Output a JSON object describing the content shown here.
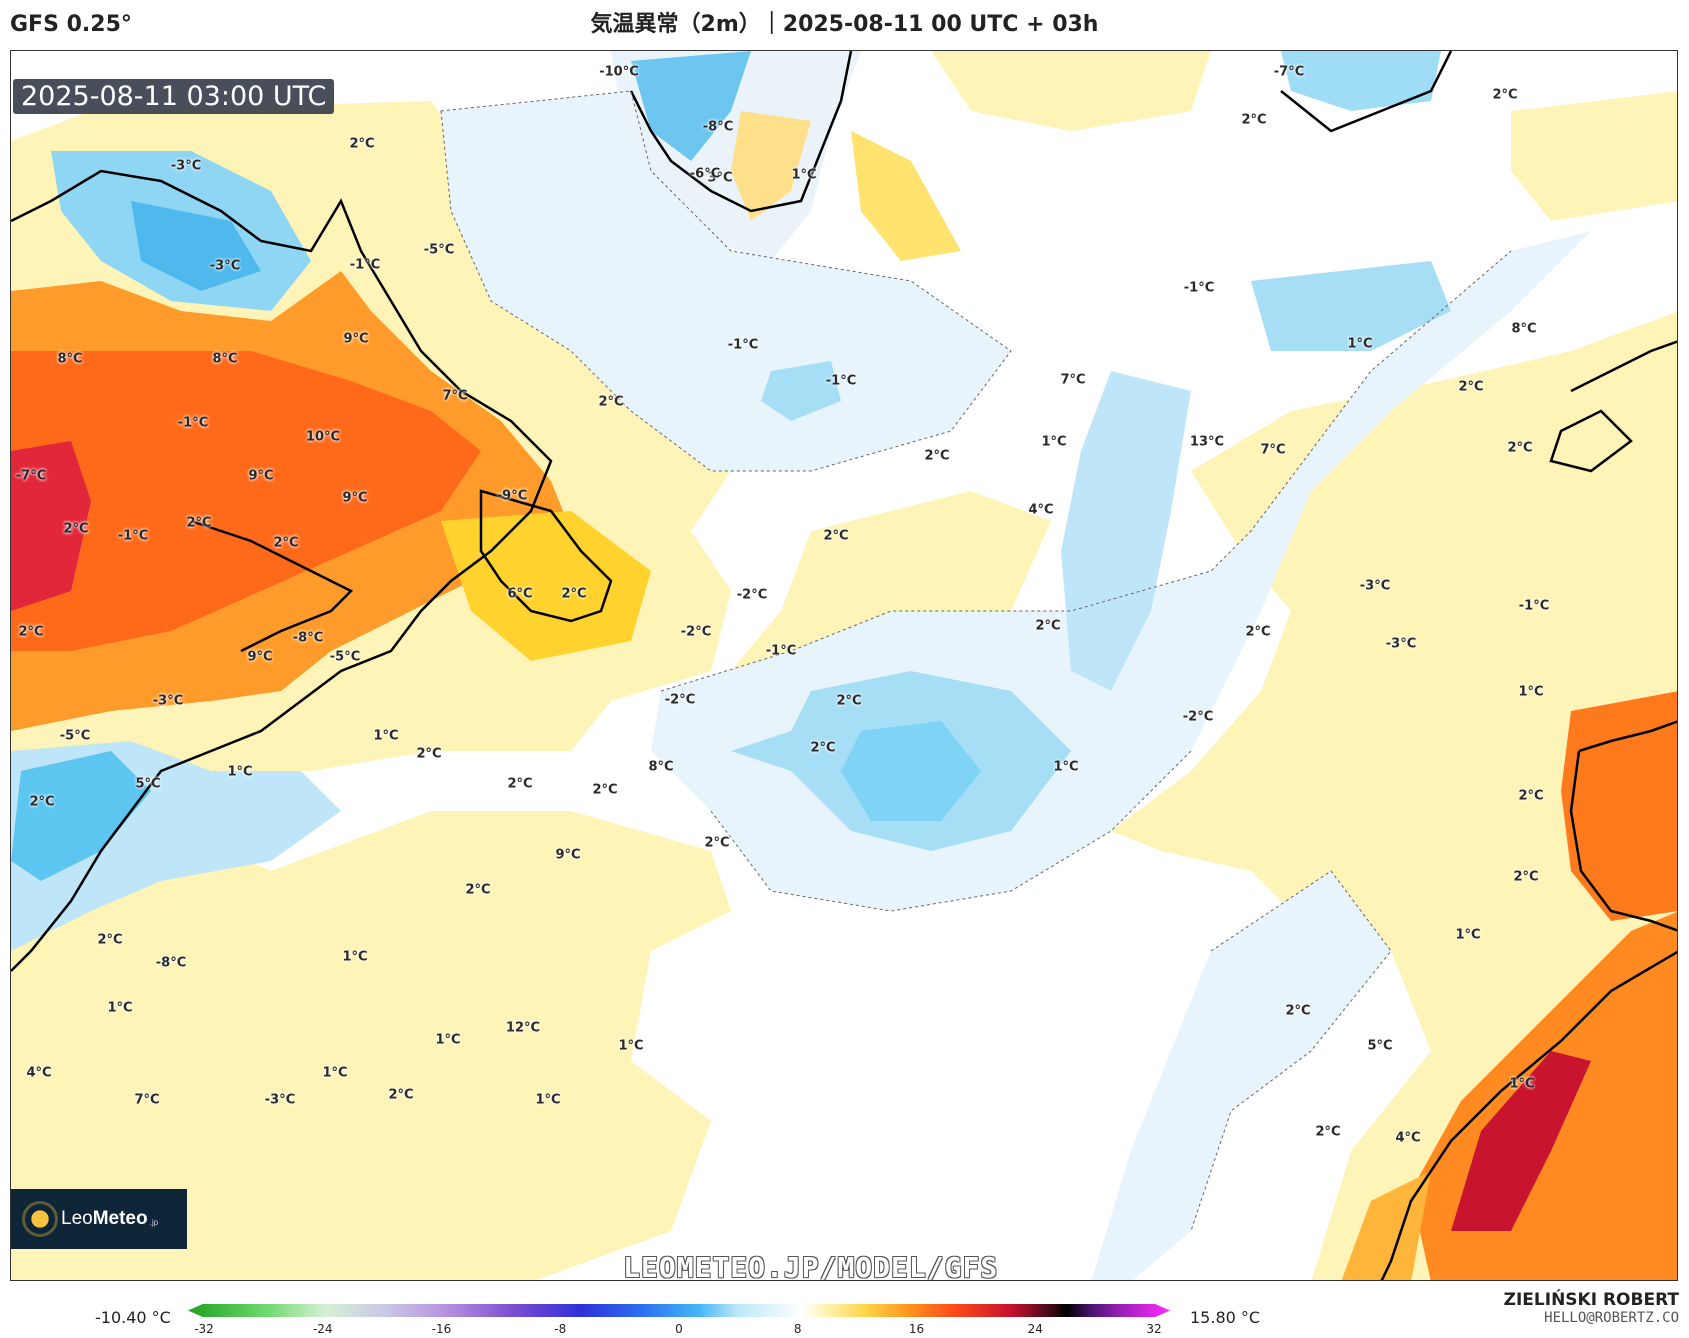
{
  "header": {
    "model": "GFS 0.25°",
    "title": "気温異常（2m）｜2025-08-11 00 UTC + 03h"
  },
  "map": {
    "valid_time": "2025-08-11 03:00 UTC",
    "watermark_url": "LEOMETEO.JP/MODEL/GFS",
    "logo_text": "LeoMeteo",
    "logo_bold": "Meteo",
    "logo_light": "Leo",
    "logo_suffix": ".jp",
    "labels": [
      {
        "text": "-3°C"
      },
      {
        "text": "2°C"
      },
      {
        "text": "-10°C"
      },
      {
        "text": "-7°C"
      },
      {
        "text": "2°C"
      },
      {
        "text": "2°C"
      },
      {
        "text": "-8°C"
      },
      {
        "text": "3°C"
      },
      {
        "text": "-6°C"
      },
      {
        "text": "1°C"
      },
      {
        "text": "-5°C"
      },
      {
        "text": "-3°C"
      },
      {
        "text": "-1°C"
      },
      {
        "text": "-1°C"
      },
      {
        "text": "-1°C"
      },
      {
        "text": "1°C"
      },
      {
        "text": "8°C"
      },
      {
        "text": "8°C"
      },
      {
        "text": "8°C"
      },
      {
        "text": "-1°C"
      },
      {
        "text": "9°C"
      },
      {
        "text": "2°C"
      },
      {
        "text": "7°C"
      },
      {
        "text": "7°C"
      },
      {
        "text": "2°C"
      },
      {
        "text": "-1°C"
      },
      {
        "text": "2°C"
      },
      {
        "text": "1°C"
      },
      {
        "text": "13°C"
      },
      {
        "text": "7°C"
      },
      {
        "text": "-7°C"
      },
      {
        "text": "2°C"
      },
      {
        "text": "9°C"
      },
      {
        "text": "10°C"
      },
      {
        "text": "9°C"
      },
      {
        "text": "-9°C"
      },
      {
        "text": "2°C"
      },
      {
        "text": "-1°C"
      },
      {
        "text": "2°C"
      },
      {
        "text": "2°C"
      },
      {
        "text": "2°C"
      },
      {
        "text": "4°C"
      },
      {
        "text": "6°C"
      },
      {
        "text": "2°C"
      },
      {
        "text": "-2°C"
      },
      {
        "text": "-3°C"
      },
      {
        "text": "-1°C"
      },
      {
        "text": "2°C"
      },
      {
        "text": "2°C"
      },
      {
        "text": "2°C"
      },
      {
        "text": "-8°C"
      },
      {
        "text": "-2°C"
      },
      {
        "text": "-3°C"
      },
      {
        "text": "9°C"
      },
      {
        "text": "-5°C"
      },
      {
        "text": "-1°C"
      },
      {
        "text": "-2°C"
      },
      {
        "text": "2°C"
      },
      {
        "text": "1°C"
      },
      {
        "text": "-2°C"
      },
      {
        "text": "-3°C"
      },
      {
        "text": "-5°C"
      },
      {
        "text": "2°C"
      },
      {
        "text": "1°C"
      },
      {
        "text": "1°C"
      },
      {
        "text": "2°C"
      },
      {
        "text": "5°C"
      },
      {
        "text": "1°C"
      },
      {
        "text": "2°C"
      },
      {
        "text": "2°C"
      },
      {
        "text": "8°C"
      },
      {
        "text": "2°C"
      },
      {
        "text": "2°C"
      },
      {
        "text": "2°C"
      },
      {
        "text": "9°C"
      },
      {
        "text": "2°C"
      },
      {
        "text": "2°C"
      },
      {
        "text": "1°C"
      },
      {
        "text": "2°C"
      },
      {
        "text": "-8°C"
      },
      {
        "text": "1°C"
      },
      {
        "text": "2°C"
      },
      {
        "text": "1°C"
      },
      {
        "text": "12°C"
      },
      {
        "text": "1°C"
      },
      {
        "text": "1°C"
      },
      {
        "text": "5°C"
      },
      {
        "text": "4°C"
      },
      {
        "text": "7°C"
      },
      {
        "text": "1°C"
      },
      {
        "text": "-3°C"
      },
      {
        "text": "2°C"
      },
      {
        "text": "1°C"
      },
      {
        "text": "1°C"
      },
      {
        "text": "2°C"
      },
      {
        "text": "4°C"
      }
    ]
  },
  "legend": {
    "min_label": "-10.40 °C",
    "max_label": "15.80 °C",
    "ticks": [
      "-32",
      "-24",
      "-16",
      "-8",
      "0",
      "8",
      "16",
      "24",
      "32"
    ],
    "unit": "°C",
    "scale_min": -32,
    "scale_max": 32
  },
  "author": {
    "name": "ZIELIŃSKI ROBERT",
    "email": "HELLO@ROBERTZ.CO"
  }
}
